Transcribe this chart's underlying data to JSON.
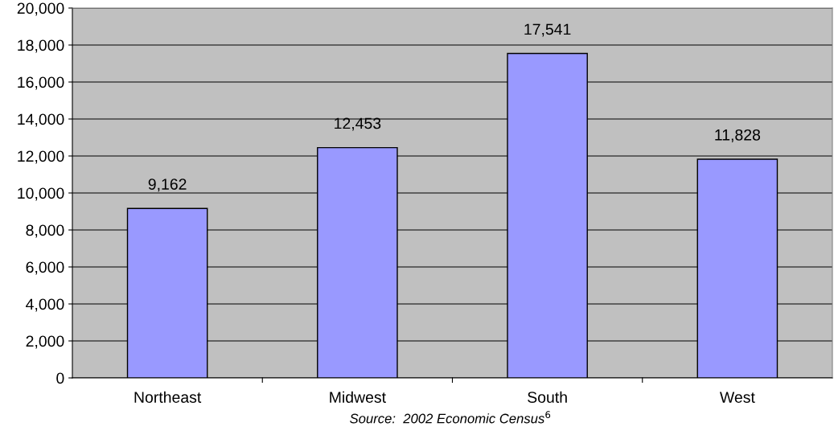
{
  "chart_data": {
    "type": "bar",
    "categories": [
      "Northeast",
      "Midwest",
      "South",
      "West"
    ],
    "values": [
      9162,
      12453,
      17541,
      11828
    ],
    "color": "#9999ff",
    "value_labels": [
      "9,162",
      "12,453",
      "17,541",
      "11,828"
    ],
    "ylim": [
      0,
      20000
    ],
    "yticks": [
      0,
      {
        "value": 2000,
        "label": "2,000"
      },
      {
        "value": 4000,
        "label": "4,000"
      },
      {
        "value": 6000,
        "label": "6,000"
      },
      {
        "value": 8000,
        "label": "8,000"
      },
      {
        "value": 10000,
        "label": "10,000"
      },
      {
        "value": 12000,
        "label": "12,000"
      },
      {
        "value": 14000,
        "label": "14,000"
      },
      {
        "value": 16000,
        "label": "16,000"
      },
      {
        "value": 18000,
        "label": "18,000"
      },
      {
        "value": 20000,
        "label": "20,000"
      }
    ],
    "grid": "y",
    "legend": false,
    "annotations": [
      "Source:  2002 Economic Census$^{6}$"
    ]
  }
}
